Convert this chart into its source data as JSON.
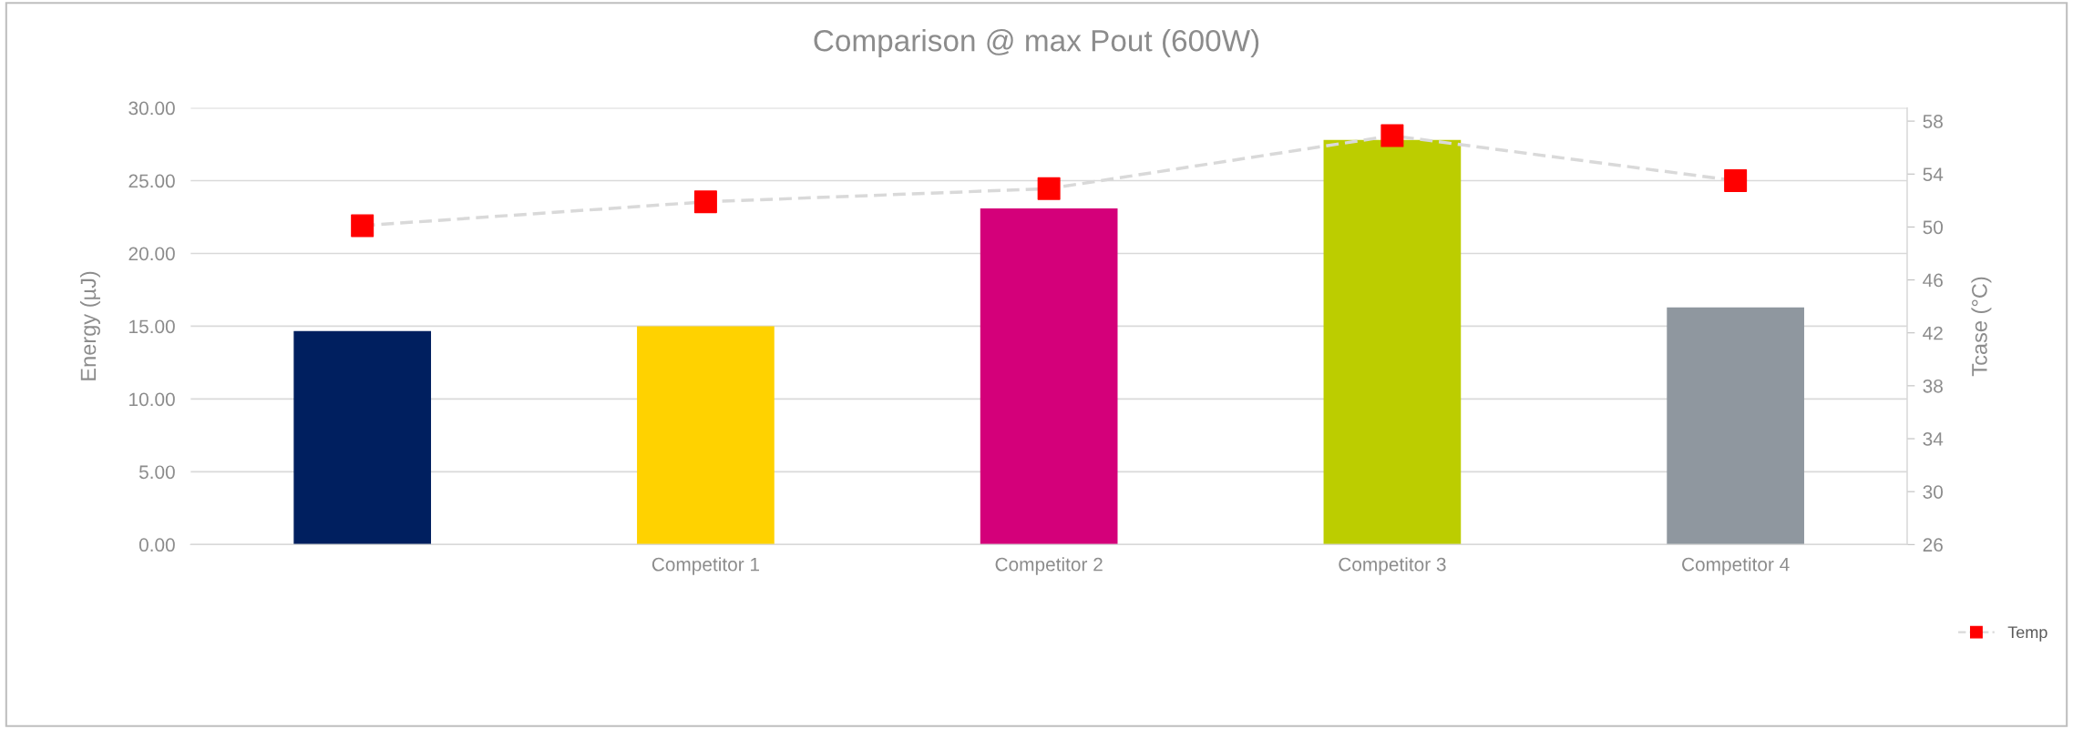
{
  "chart_data": {
    "type": "bar",
    "title": "Comparison @ max Pout (600W)",
    "ylabel": "Energy (µJ)",
    "y2label": "Tcase (°C)",
    "categories": [
      null,
      "Competitor 1",
      "Competitor 2",
      "Competitor 3",
      "Competitor 4"
    ],
    "series": [
      {
        "colors": [
          "#001f5f",
          "#ffd200",
          "#d4007a",
          "#bccd00",
          "#8f979f"
        ],
        "values": [
          14.67,
          15.0,
          23.1,
          27.8,
          16.3
        ]
      },
      {
        "type": "line",
        "name": "Temp",
        "axis": "y2",
        "color": "#d9d9d9",
        "colors": [
          "#ff0000",
          "#ff0000",
          "#ff0000",
          "#ff0000",
          "#ff0000"
        ],
        "marker": "square",
        "line_style": "dashed",
        "values": [
          50.1,
          51.9,
          52.9,
          56.9,
          53.5
        ]
      }
    ],
    "ylim": [
      0,
      30
    ],
    "yticks": [
      {
        "value": 0,
        "label": "0.00"
      },
      {
        "value": 5,
        "label": "5.00"
      },
      {
        "value": 10,
        "label": "10.00"
      },
      {
        "value": 15,
        "label": "15.00"
      },
      {
        "value": 20,
        "label": "20.00"
      },
      {
        "value": 25,
        "label": "25.00"
      },
      {
        "value": 30,
        "label": "30.00"
      }
    ],
    "y2lim": [
      26,
      59
    ],
    "y2ticks": [
      26,
      30,
      34,
      38,
      42,
      46,
      50,
      54,
      58
    ],
    "grid": "y",
    "legend": "bottom right"
  }
}
